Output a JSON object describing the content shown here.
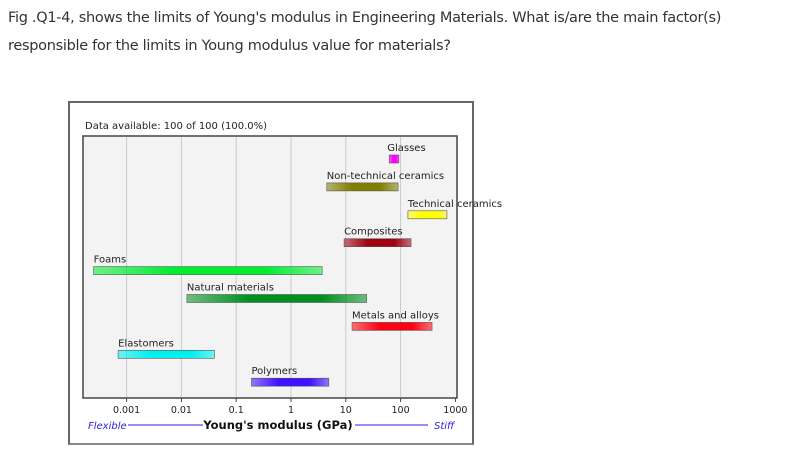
{
  "question": "Fig .Q1-4, shows the limits of Young's modulus in Engineering Materials.  What is/are the main factor(s) responsible for the limits in Young modulus value for materials?",
  "chart_data": {
    "type": "bar",
    "orientation": "horizontal-range",
    "subtitle": "Data available: 100 of 100 (100.0%)",
    "xlabel": "Young's modulus (GPa)",
    "x_scale": "log",
    "xlim": [
      0.00018,
      1000
    ],
    "x_ticks": [
      "0.001",
      "0.01",
      "0.1",
      "1",
      "10",
      "100",
      "1000"
    ],
    "x_tick_values": [
      0.001,
      0.01,
      0.1,
      1,
      10,
      100,
      1000
    ],
    "left_annotation": "Flexible",
    "right_annotation": "Stiff",
    "grid": "vertical",
    "series": [
      {
        "name": "Glasses",
        "min": 62,
        "max": 93,
        "color": "#ff00ff"
      },
      {
        "name": "Non-technical ceramics",
        "min": 4.5,
        "max": 90,
        "color": "#808000"
      },
      {
        "name": "Technical ceramics",
        "min": 136,
        "max": 700,
        "color": "#ffff00"
      },
      {
        "name": "Composites",
        "min": 9.3,
        "max": 155,
        "color": "#a00010"
      },
      {
        "name": "Foams",
        "min": 0.00025,
        "max": 3.7,
        "color": "#00ee30"
      },
      {
        "name": "Natural materials",
        "min": 0.0126,
        "max": 24,
        "color": "#009020"
      },
      {
        "name": "Metals and alloys",
        "min": 13,
        "max": 375,
        "color": "#ff0010"
      },
      {
        "name": "Elastomers",
        "min": 0.0007,
        "max": 0.04,
        "color": "#00f0f0"
      },
      {
        "name": "Polymers",
        "min": 0.19,
        "max": 4.9,
        "color": "#4010ff"
      }
    ]
  }
}
